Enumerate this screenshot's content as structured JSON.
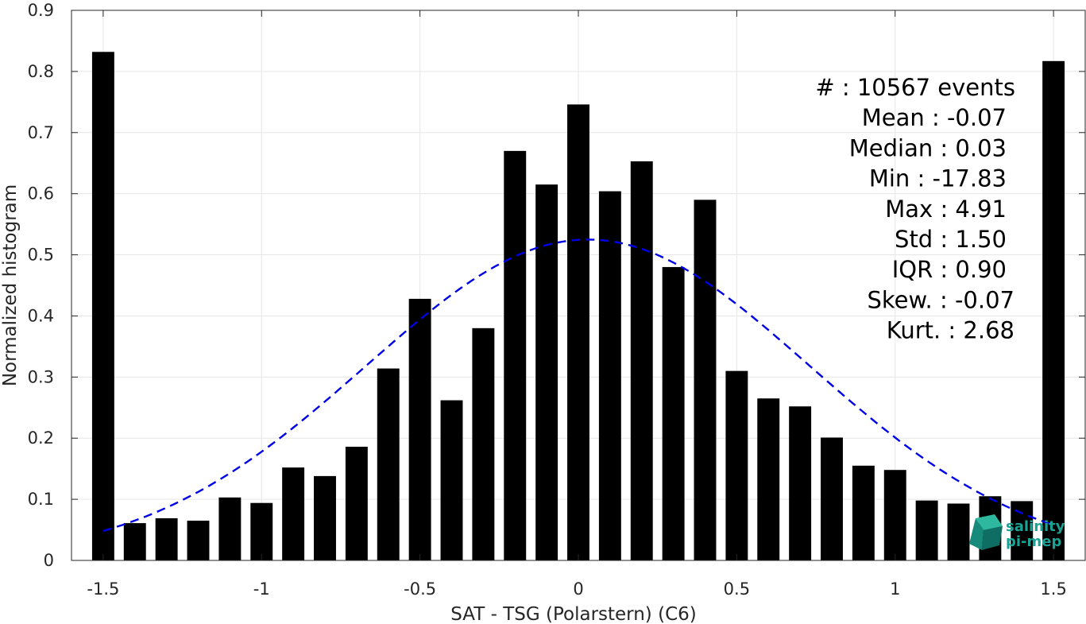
{
  "chart_data": {
    "type": "bar",
    "xlabel": "SAT - TSG (Polarstern) (C6)",
    "ylabel": "Normalized histogram",
    "xlim": [
      -1.6,
      1.6
    ],
    "ylim": [
      0,
      0.9
    ],
    "xticks": [
      -1.5,
      -1,
      -0.5,
      0,
      0.5,
      1,
      1.5
    ],
    "xtick_labels": [
      "-1.5",
      "-1",
      "-0.5",
      "0",
      "0.5",
      "1",
      "1.5"
    ],
    "yticks": [
      0,
      0.1,
      0.2,
      0.3,
      0.4,
      0.5,
      0.6,
      0.7,
      0.8,
      0.9
    ],
    "ytick_labels": [
      "0",
      "0.1",
      "0.2",
      "0.3",
      "0.4",
      "0.5",
      "0.6",
      "0.7",
      "0.8",
      "0.9"
    ],
    "grid": true,
    "bar_width": 0.07,
    "x": [
      -1.5,
      -1.4,
      -1.3,
      -1.2,
      -1.1,
      -1.0,
      -0.9,
      -0.8,
      -0.7,
      -0.6,
      -0.5,
      -0.4,
      -0.3,
      -0.2,
      -0.1,
      0.0,
      0.1,
      0.2,
      0.3,
      0.4,
      0.5,
      0.6,
      0.7,
      0.8,
      0.9,
      1.0,
      1.1,
      1.2,
      1.3,
      1.4,
      1.5
    ],
    "values": [
      0.832,
      0.061,
      0.069,
      0.065,
      0.103,
      0.094,
      0.152,
      0.138,
      0.186,
      0.314,
      0.428,
      0.262,
      0.38,
      0.67,
      0.615,
      0.746,
      0.604,
      0.653,
      0.48,
      0.59,
      0.31,
      0.265,
      0.252,
      0.201,
      0.155,
      0.148,
      0.098,
      0.093,
      0.105,
      0.097,
      0.817
    ],
    "bar_color": "#000000",
    "fit_curve": {
      "style": "dashed",
      "color": "#0000e6",
      "mean": 0.03,
      "std": 0.7,
      "peak": 0.525,
      "x_range": [
        -1.5,
        1.5
      ]
    },
    "annotations": [
      "#  : 10567 events",
      "Mean : -0.07",
      "Median : 0.03",
      "Min : -17.83",
      "Max : 4.91",
      "Std : 1.50",
      "IQR : 0.90",
      "Skew. : -0.07",
      "Kurt. : 2.68"
    ]
  },
  "logo": {
    "line1": "salinity",
    "line2": "pi-mep",
    "color": "#1aa394"
  }
}
